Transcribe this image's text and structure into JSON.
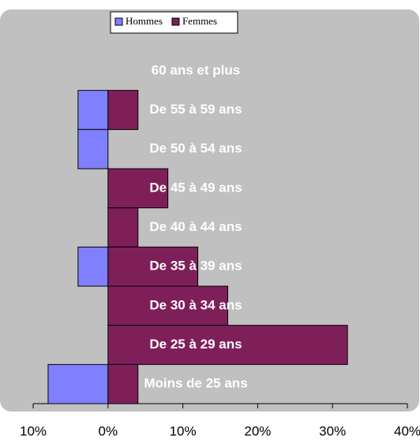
{
  "chart_data": {
    "type": "bar",
    "orientation": "horizontal",
    "categories": [
      "60 ans et plus",
      "De 55 à 59 ans",
      "De 50 à 54 ans",
      "De 45 à 49 ans",
      "De 40 à 44 ans",
      "De 35 à 39 ans",
      "De 30 à 34 ans",
      "De 25 à 29 ans",
      "Moins de 25 ans"
    ],
    "series": [
      {
        "name": "Hommes",
        "color": "#8080ff",
        "values": [
          0,
          -4,
          -4,
          0,
          0,
          -4,
          0,
          0,
          -8
        ]
      },
      {
        "name": "Femmes",
        "color": "#7f1f5a",
        "values": [
          0,
          4,
          0,
          8,
          4,
          12,
          16,
          32,
          4
        ]
      }
    ],
    "xlim": [
      -10,
      40
    ],
    "xticks": [
      {
        "value": -10,
        "label": "10%"
      },
      {
        "value": 0,
        "label": "0%"
      },
      {
        "value": 10,
        "label": "10%"
      },
      {
        "value": 20,
        "label": "20%"
      },
      {
        "value": 30,
        "label": "30%"
      },
      {
        "value": 40,
        "label": "40%"
      }
    ],
    "legend": "top"
  }
}
